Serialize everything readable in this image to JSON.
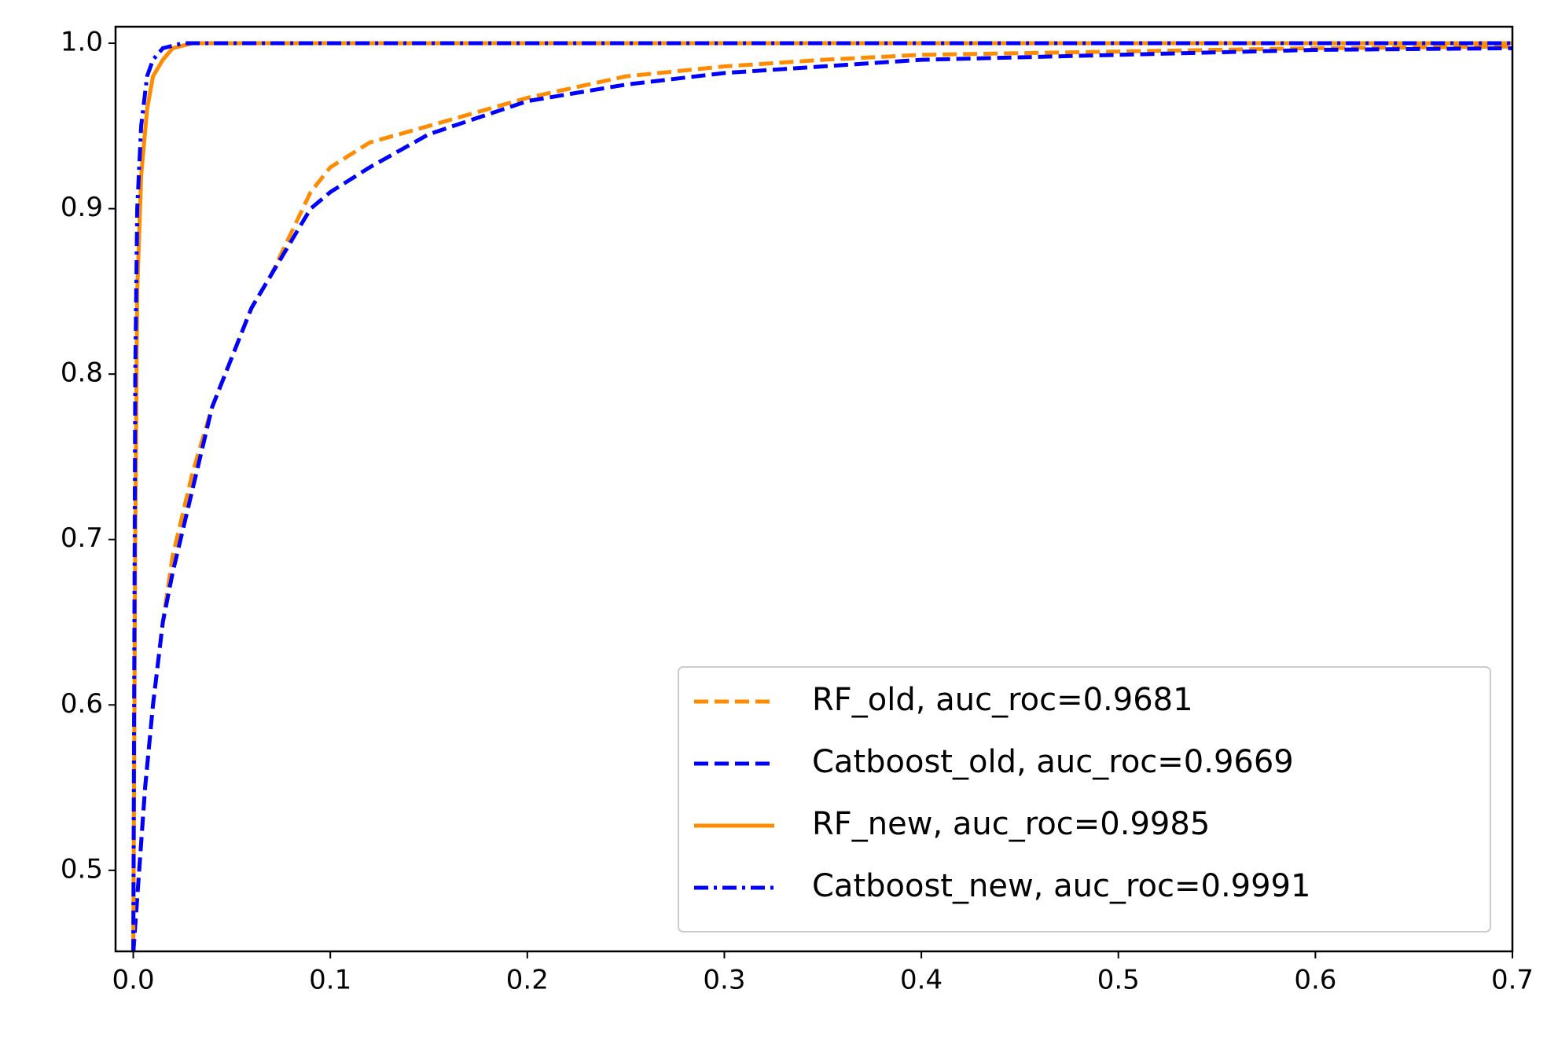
{
  "chart_data": {
    "type": "line",
    "xlim": [
      -0.009,
      0.7
    ],
    "ylim": [
      0.451,
      1.01
    ],
    "xticks": [
      {
        "value": 0,
        "label": "0.0"
      },
      0.1,
      0.2,
      0.3,
      0.4,
      0.5,
      0.6,
      0.7
    ],
    "yticks": [
      0.5,
      0.6,
      0.7,
      0.8,
      0.9,
      {
        "value": 1,
        "label": "1.0"
      }
    ],
    "grid": false,
    "legend": "lower right",
    "series": [
      {
        "name": "RF_old, auc_roc=0.9681",
        "color": "#ff8c00",
        "style": "dashed",
        "x": [
          0,
          0.003,
          0.006,
          0.01,
          0.015,
          0.02,
          0.03,
          0.04,
          0.05,
          0.06,
          0.07,
          0.08,
          0.09,
          0.1,
          0.12,
          0.15,
          0.2,
          0.25,
          0.3,
          0.35,
          0.4,
          0.5,
          0.6,
          0.7
        ],
        "values": [
          0.45,
          0.5,
          0.55,
          0.6,
          0.65,
          0.69,
          0.74,
          0.78,
          0.81,
          0.84,
          0.86,
          0.885,
          0.91,
          0.925,
          0.94,
          0.95,
          0.967,
          0.98,
          0.986,
          0.99,
          0.993,
          0.995,
          0.997,
          0.998
        ]
      },
      {
        "name": "Catboost_old, auc_roc=0.9669",
        "color": "#0000ff",
        "style": "dashed",
        "x": [
          0,
          0.003,
          0.006,
          0.01,
          0.015,
          0.02,
          0.03,
          0.04,
          0.05,
          0.06,
          0.07,
          0.08,
          0.09,
          0.1,
          0.12,
          0.15,
          0.2,
          0.25,
          0.3,
          0.35,
          0.4,
          0.5,
          0.6,
          0.7
        ],
        "values": [
          0.45,
          0.5,
          0.55,
          0.6,
          0.65,
          0.68,
          0.73,
          0.78,
          0.81,
          0.84,
          0.86,
          0.88,
          0.9,
          0.91,
          0.925,
          0.945,
          0.965,
          0.975,
          0.982,
          0.986,
          0.99,
          0.993,
          0.996,
          0.997
        ]
      },
      {
        "name": "RF_new, auc_roc=0.9985",
        "color": "#ff8c00",
        "style": "solid",
        "x": [
          0,
          0.001,
          0.002,
          0.004,
          0.007,
          0.01,
          0.015,
          0.02,
          0.03,
          0.7
        ],
        "values": [
          0.45,
          0.7,
          0.85,
          0.92,
          0.96,
          0.98,
          0.99,
          0.997,
          1.0,
          1.0
        ]
      },
      {
        "name": "Catboost_new, auc_roc=0.9991",
        "color": "#0000ff",
        "style": "dashdot",
        "x": [
          0,
          0.001,
          0.002,
          0.004,
          0.007,
          0.01,
          0.015,
          0.025,
          0.7
        ],
        "values": [
          0.45,
          0.8,
          0.9,
          0.95,
          0.98,
          0.99,
          0.997,
          1.0,
          1.0
        ]
      }
    ]
  }
}
